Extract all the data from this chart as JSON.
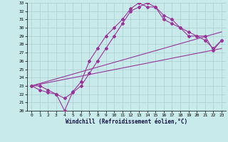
{
  "xlabel": "Windchill (Refroidissement éolien,°C)",
  "bg_color": "#c8eaea",
  "grid_color": "#aacccc",
  "line_color": "#993399",
  "xlim": [
    -0.5,
    23.5
  ],
  "ylim": [
    20,
    33
  ],
  "xticks": [
    0,
    1,
    2,
    3,
    4,
    5,
    6,
    7,
    8,
    9,
    10,
    11,
    12,
    13,
    14,
    15,
    16,
    17,
    18,
    19,
    20,
    21,
    22,
    23
  ],
  "yticks": [
    20,
    21,
    22,
    23,
    24,
    25,
    26,
    27,
    28,
    29,
    30,
    31,
    32,
    33
  ],
  "line1_x": [
    0,
    1,
    2,
    3,
    4,
    5,
    6,
    7,
    8,
    9,
    10,
    11,
    12,
    13,
    14,
    15,
    16,
    17,
    18,
    19,
    20,
    21,
    22,
    23
  ],
  "line1_y": [
    23.0,
    23.0,
    22.5,
    22.0,
    20.0,
    22.3,
    23.5,
    26.0,
    27.5,
    29.0,
    30.0,
    31.0,
    32.3,
    33.0,
    32.5,
    32.5,
    31.5,
    31.0,
    30.0,
    29.0,
    29.0,
    28.5,
    27.5,
    28.5
  ],
  "line2_x": [
    0,
    1,
    2,
    3,
    4,
    5,
    6,
    7,
    8,
    9,
    10,
    11,
    12,
    13,
    14,
    15,
    16,
    17,
    18,
    19,
    20,
    21,
    22,
    23
  ],
  "line2_y": [
    23.0,
    22.5,
    22.2,
    22.0,
    21.5,
    22.2,
    23.0,
    24.5,
    26.0,
    27.5,
    29.0,
    30.5,
    32.0,
    32.5,
    33.0,
    32.5,
    31.0,
    30.5,
    30.0,
    29.5,
    29.0,
    29.0,
    27.3,
    28.5
  ],
  "line3_x": [
    0,
    23
  ],
  "line3_y": [
    23.0,
    29.5
  ],
  "line4_x": [
    0,
    23
  ],
  "line4_y": [
    23.0,
    27.5
  ]
}
